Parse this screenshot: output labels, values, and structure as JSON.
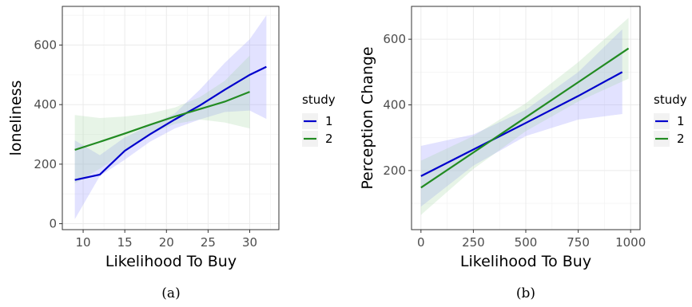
{
  "colors": {
    "study_1": "#0000cc",
    "study_2": "#228b22",
    "ribbon_1": "#8c8cff",
    "ribbon_2": "#9ed59e"
  },
  "chart_data": [
    {
      "type": "line",
      "caption": "(a)",
      "xlabel": "Likelihood To Buy",
      "ylabel": "loneliness",
      "xlim": [
        7.5,
        33.5
      ],
      "ylim": [
        -20,
        730
      ],
      "x_ticks": [
        10,
        15,
        20,
        25,
        30
      ],
      "y_ticks": [
        0,
        200,
        400,
        600
      ],
      "grid": true,
      "legend": {
        "title": "study",
        "position": "right",
        "labels": [
          "1",
          "2"
        ]
      },
      "series": [
        {
          "name": "1",
          "color_key": "study_1",
          "x": [
            9,
            12,
            15,
            18,
            21,
            24,
            27,
            30,
            32
          ],
          "y": [
            147,
            165,
            245,
            300,
            350,
            397,
            450,
            500,
            527
          ],
          "lower": [
            15,
            160,
            215,
            275,
            320,
            350,
            375,
            380,
            352
          ],
          "upper": [
            280,
            230,
            290,
            330,
            370,
            450,
            540,
            620,
            700
          ]
        },
        {
          "name": "2",
          "color_key": "study_2",
          "x": [
            9,
            12,
            15,
            18,
            21,
            24,
            27,
            30
          ],
          "y": [
            248,
            275,
            303,
            332,
            360,
            385,
            410,
            443
          ],
          "lower": [
            135,
            185,
            240,
            300,
            335,
            350,
            340,
            320
          ],
          "upper": [
            365,
            355,
            360,
            370,
            390,
            425,
            480,
            565
          ]
        }
      ]
    },
    {
      "type": "line",
      "caption": "(b)",
      "xlabel": "Likelihood To Buy",
      "ylabel": "Perception Change",
      "xlim": [
        -45,
        1045
      ],
      "ylim": [
        20,
        700
      ],
      "x_ticks": [
        0,
        250,
        500,
        750,
        1000
      ],
      "y_ticks": [
        200,
        400,
        600
      ],
      "grid": true,
      "legend": {
        "title": "study",
        "position": "right",
        "labels": [
          "1",
          "2"
        ]
      },
      "series": [
        {
          "name": "1",
          "color_key": "study_1",
          "x": [
            0,
            250,
            500,
            750,
            960
          ],
          "y": [
            183,
            264,
            345,
            427,
            500
          ],
          "lower": [
            90,
            215,
            305,
            355,
            372
          ],
          "upper": [
            275,
            310,
            385,
            500,
            630
          ]
        },
        {
          "name": "2",
          "color_key": "study_2",
          "x": [
            0,
            250,
            500,
            750,
            990
          ],
          "y": [
            148,
            255,
            362,
            469,
            572
          ],
          "lower": [
            65,
            205,
            320,
            410,
            480
          ],
          "upper": [
            230,
            305,
            405,
            530,
            665
          ]
        }
      ]
    }
  ]
}
